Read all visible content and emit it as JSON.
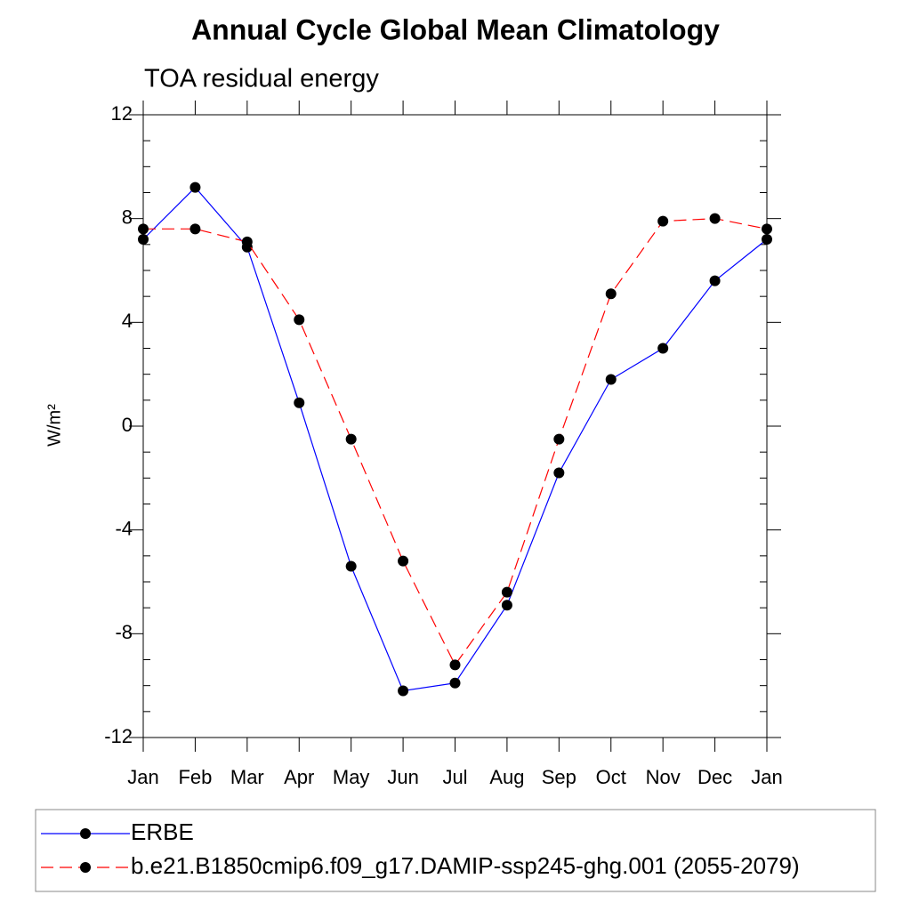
{
  "chart_data": {
    "type": "line",
    "title": "Annual Cycle Global Mean Climatology",
    "subtitle": "TOA residual energy",
    "y_label": "W/m²",
    "categories": [
      "Jan",
      "Feb",
      "Mar",
      "Apr",
      "May",
      "Jun",
      "Jul",
      "Aug",
      "Sep",
      "Oct",
      "Nov",
      "Dec",
      "Jan"
    ],
    "series": [
      {
        "name": "ERBE",
        "color": "#0000ff",
        "dash": "solid",
        "values": [
          7.2,
          9.2,
          6.9,
          0.9,
          -5.4,
          -10.2,
          -9.9,
          -6.9,
          -1.8,
          1.8,
          3.0,
          5.6,
          7.2
        ]
      },
      {
        "name": "b.e21.B1850cmip6.f09_g17.DAMIP-ssp245-ghg.001 (2055-2079)",
        "color": "#ff0000",
        "dash": "dashed",
        "values": [
          7.6,
          7.6,
          7.1,
          4.1,
          -0.5,
          -5.2,
          -9.2,
          -6.4,
          -0.5,
          5.1,
          7.9,
          8.0,
          7.6
        ]
      }
    ],
    "ylim": [
      -12,
      12
    ],
    "yticks": [
      -12,
      -8,
      -4,
      0,
      4,
      8,
      12
    ],
    "grid": false,
    "legend": "bottom"
  }
}
